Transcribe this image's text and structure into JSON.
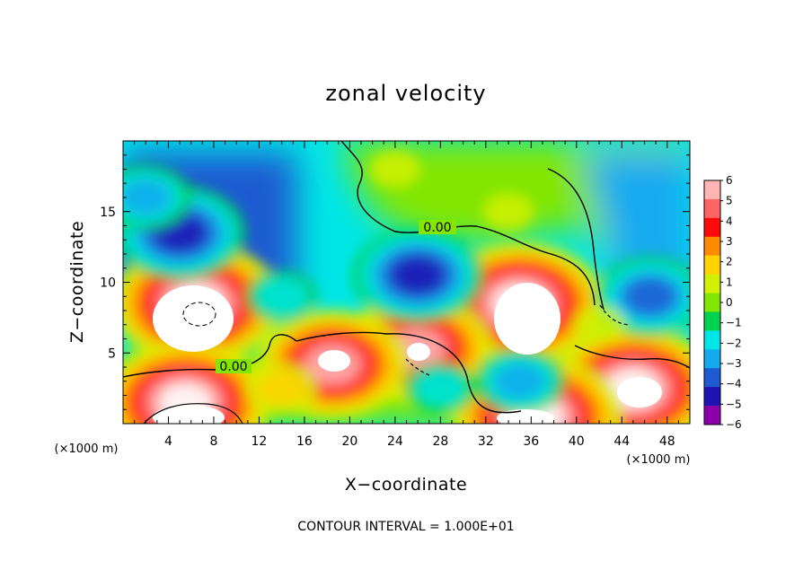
{
  "chart_data": {
    "type": "heatmap",
    "title": "zonal velocity",
    "xlabel": "X−coordinate",
    "ylabel": "Z−coordinate",
    "x_unit_label": "(×1000 m)",
    "y_unit_label": "(×1000 m)",
    "xlim": [
      0,
      50
    ],
    "ylim": [
      0,
      20
    ],
    "x_ticks": [
      4,
      8,
      12,
      16,
      20,
      24,
      28,
      32,
      36,
      40,
      44,
      48
    ],
    "y_ticks": [
      5,
      10,
      15
    ],
    "colorbar": {
      "ticks": [
        "6",
        "5",
        "4",
        "3",
        "2",
        "1",
        "0",
        "−1",
        "−2",
        "−3",
        "−4",
        "−5",
        "−6"
      ],
      "colors": [
        "#ffb4b4",
        "#ff6464",
        "#ff0a0a",
        "#ff8c00",
        "#ffd200",
        "#d2f000",
        "#82e600",
        "#00d250",
        "#00e6e6",
        "#14aaf0",
        "#1e5ad2",
        "#1e14b4",
        "#8c00aa"
      ]
    },
    "contour_label": "0.00",
    "footer": "CONTOUR INTERVAL = 1.000E+01",
    "features": [
      {
        "x": 6.5,
        "z": 8.5,
        "value": 7
      },
      {
        "x": 35.0,
        "z": 8.5,
        "value": 7
      },
      {
        "x": 26.0,
        "z": 5.3,
        "value": 6
      },
      {
        "x": 18.5,
        "z": 4.2,
        "value": 6
      },
      {
        "x": 45.0,
        "z": 2.5,
        "value": 7
      },
      {
        "x": 5.5,
        "z": 1.5,
        "value": 7
      },
      {
        "x": 36.5,
        "z": 0.5,
        "value": 7
      },
      {
        "x": 5.0,
        "z": 13.5,
        "value": -4.5
      },
      {
        "x": 26.0,
        "z": 10.5,
        "value": -4.5
      },
      {
        "x": 46.5,
        "z": 9.0,
        "value": -4
      },
      {
        "x": 35.0,
        "z": 3.0,
        "value": -3
      },
      {
        "x": 28.0,
        "z": 2.5,
        "value": -2
      },
      {
        "x": 2.0,
        "z": 16.0,
        "value": -3
      },
      {
        "x": 24.0,
        "z": 18.0,
        "value": 0.5
      },
      {
        "x": 34.0,
        "z": 15.0,
        "value": 1
      },
      {
        "x": 14.0,
        "z": 9.0,
        "value": -1.8
      },
      {
        "x": 42.0,
        "z": 7.0,
        "value": 0.5
      },
      {
        "x": 14.0,
        "z": 2.5,
        "value": 2
      }
    ]
  }
}
